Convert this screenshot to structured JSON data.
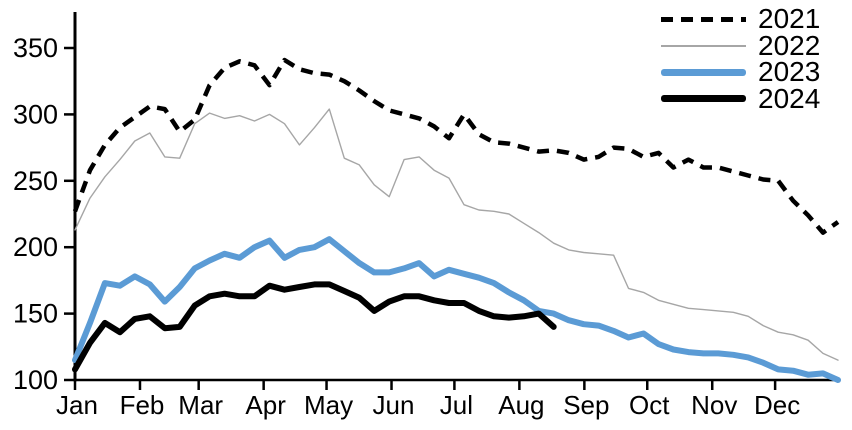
{
  "chart_data": {
    "type": "line",
    "title": "",
    "grid": false,
    "x_axis": {
      "tick_labels": [
        "Jan",
        "Feb",
        "Mar",
        "Apr",
        "May",
        "Jun",
        "Jul",
        "Aug",
        "Sep",
        "Oct",
        "Nov",
        "Dec"
      ]
    },
    "y_axis": {
      "range": [
        100,
        350
      ],
      "ticks": [
        350,
        300,
        250,
        200,
        150,
        100
      ]
    },
    "legend": {
      "position": "top-right"
    },
    "x_unit": "week-of-year",
    "series": [
      {
        "name": "2021",
        "color": "#000000",
        "line_style": "dashed",
        "line_width": 4.5,
        "values": [
          227,
          258,
          277,
          290,
          298,
          306,
          304,
          287,
          296,
          322,
          335,
          340,
          337,
          322,
          341,
          334,
          331,
          330,
          325,
          318,
          310,
          303,
          300,
          297,
          291,
          282,
          300,
          285,
          279,
          278,
          275,
          272,
          273,
          271,
          266,
          268,
          275,
          274,
          268,
          271,
          260,
          266,
          260,
          260,
          257,
          254,
          251,
          250,
          235,
          224,
          211,
          219
        ]
      },
      {
        "name": "2022",
        "color": "#a6a6a6",
        "line_style": "solid",
        "line_width": 1.4,
        "values": [
          213,
          237,
          253,
          266,
          280,
          286,
          268,
          267,
          293,
          301,
          297,
          299,
          295,
          300,
          293,
          277,
          290,
          304,
          267,
          262,
          247,
          238,
          266,
          268,
          258,
          252,
          232,
          228,
          227,
          225,
          218,
          211,
          203,
          198,
          196,
          195,
          194,
          169,
          166,
          160,
          157,
          154,
          153,
          152,
          151,
          148,
          141,
          136,
          134,
          130,
          120,
          115
        ]
      },
      {
        "name": "2023",
        "color": "#5b9bd5",
        "line_style": "solid",
        "line_width": 6,
        "values": [
          115,
          143,
          173,
          171,
          178,
          172,
          159,
          170,
          184,
          190,
          195,
          192,
          200,
          205,
          192,
          198,
          200,
          206,
          197,
          188,
          181,
          181,
          184,
          188,
          178,
          183,
          180,
          177,
          173,
          166,
          160,
          152,
          150,
          145,
          142,
          141,
          137,
          132,
          135,
          127,
          123,
          121,
          120,
          120,
          119,
          117,
          113,
          108,
          107,
          104,
          105,
          100
        ]
      },
      {
        "name": "2024",
        "color": "#000000",
        "line_style": "solid",
        "line_width": 6,
        "values": [
          108,
          128,
          143,
          136,
          146,
          148,
          139,
          140,
          156,
          163,
          165,
          163,
          163,
          171,
          168,
          170,
          172,
          172,
          167,
          162,
          152,
          159,
          163,
          163,
          160,
          158,
          158,
          152,
          148,
          147,
          148,
          150,
          140
        ]
      }
    ]
  }
}
